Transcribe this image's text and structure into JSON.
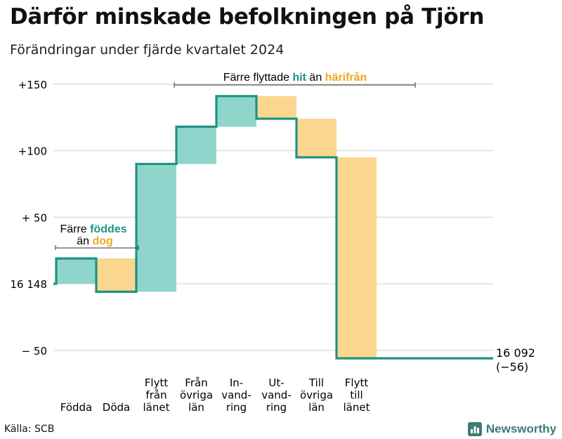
{
  "title": "Därför minskade befolkningen på Tjörn",
  "subtitle": "Förändringar under fjärde kvartalet 2024",
  "source": "Källa: SCB",
  "brand": "Newsworthy",
  "colors": {
    "increase": "#8fd5cb",
    "decrease": "#fbd68f",
    "line": "#1e9485",
    "accent_orange": "#f0a71e",
    "grid": "#dddddd"
  },
  "annotations": {
    "birth_death": {
      "line1_pre": "Färre ",
      "line1_hi": "föddes",
      "line2_pre": "än ",
      "line2_hi": "dog"
    },
    "migration": {
      "pre": "Färre flyttade ",
      "hi1": "hit",
      "mid": " än ",
      "hi2": "härifrån"
    }
  },
  "end_label": {
    "line1": "16 092",
    "line2": "(−56)"
  },
  "chart_data": {
    "type": "waterfall",
    "start_value": 16148,
    "end_value": 16092,
    "net_change": -56,
    "ylim": [
      -55,
      150
    ],
    "y_ticks": [
      {
        "value": 150,
        "label": "+150"
      },
      {
        "value": 100,
        "label": "+100"
      },
      {
        "value": 50,
        "label": "+ 50"
      },
      {
        "value": 0,
        "label": "16 148"
      },
      {
        "value": -50,
        "label": "−  50"
      }
    ],
    "steps": [
      {
        "label": [
          "Födda"
        ],
        "change": 19
      },
      {
        "label": [
          "Döda"
        ],
        "change": -25
      },
      {
        "label": [
          "Flytt",
          "från",
          "länet"
        ],
        "change": 96
      },
      {
        "label": [
          "Från",
          "övriga",
          "län"
        ],
        "change": 28
      },
      {
        "label": [
          "In-",
          "vand-",
          "ring"
        ],
        "change": 23
      },
      {
        "label": [
          "Ut-",
          "vand-",
          "ring"
        ],
        "change": -17
      },
      {
        "label": [
          "Till",
          "övriga",
          "län"
        ],
        "change": -29
      },
      {
        "label": [
          "Flytt",
          "till",
          "länet"
        ],
        "change": -151
      }
    ]
  }
}
